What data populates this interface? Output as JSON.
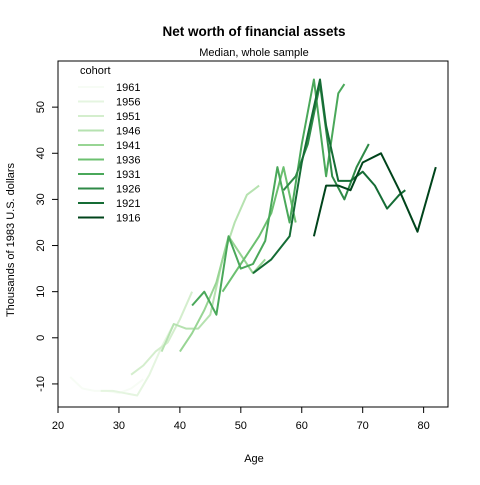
{
  "chart_data": {
    "type": "line",
    "title": "Net worth of financial assets",
    "subtitle": "Median, whole sample",
    "xlabel": "Age",
    "ylabel": "Thousands of 1983 U.S. dollars",
    "xlim": [
      20,
      84
    ],
    "ylim": [
      -15,
      60
    ],
    "x_ticks": [
      20,
      30,
      40,
      50,
      60,
      70,
      80
    ],
    "y_ticks": [
      -10,
      0,
      10,
      20,
      30,
      40,
      50
    ],
    "grid": false,
    "legend_position": "top-left",
    "legend_title": "cohort",
    "series": [
      {
        "name": "1961",
        "color": "#f7fcf5",
        "x": [
          22,
          24,
          26,
          28,
          30,
          32,
          34
        ],
        "y": [
          -8.5,
          -11,
          -11.5,
          -11.5,
          -12,
          -11,
          -9
        ]
      },
      {
        "name": "1956",
        "color": "#e5f5e0",
        "x": [
          27,
          29,
          31,
          33,
          35,
          37,
          39
        ],
        "y": [
          -11.5,
          -11.5,
          -12,
          -12.5,
          -8,
          -2,
          3
        ]
      },
      {
        "name": "1951",
        "color": "#d4eecd",
        "x": [
          32,
          34,
          36,
          38,
          40,
          42
        ],
        "y": [
          -8,
          -6,
          -3,
          -1,
          4,
          10
        ]
      },
      {
        "name": "1946",
        "color": "#b6e2b0",
        "x": [
          37,
          39,
          41,
          43,
          45,
          47,
          49,
          51,
          53
        ],
        "y": [
          -3,
          3,
          2,
          2,
          5,
          17,
          25,
          31,
          33
        ]
      },
      {
        "name": "1941",
        "color": "#98d594",
        "x": [
          40,
          42,
          44,
          46,
          48,
          50,
          52,
          54
        ],
        "y": [
          -3,
          1,
          6,
          12,
          22,
          18,
          14,
          17
        ]
      },
      {
        "name": "1936",
        "color": "#6cc070",
        "x": [
          47,
          49,
          51,
          53,
          55,
          57,
          59
        ],
        "y": [
          10,
          14,
          18,
          22,
          27,
          37,
          25
        ]
      },
      {
        "name": "1931",
        "color": "#4aa85a",
        "x": [
          42,
          44,
          46,
          48,
          50,
          52,
          54,
          56,
          58,
          60,
          62,
          64,
          66,
          67
        ],
        "y": [
          7,
          10,
          5,
          22,
          15,
          16,
          21,
          37,
          25,
          42,
          56,
          35,
          53,
          55
        ]
      },
      {
        "name": "1926",
        "color": "#2f8a47",
        "x": [
          57,
          59,
          61,
          63,
          65,
          67,
          69,
          71
        ],
        "y": [
          32,
          35,
          42,
          55,
          35,
          30,
          37,
          42
        ]
      },
      {
        "name": "1921",
        "color": "#156c35",
        "x": [
          52,
          55,
          58,
          60,
          62,
          63,
          64,
          66,
          68,
          70,
          72,
          74,
          76,
          77
        ],
        "y": [
          14,
          17,
          22,
          38,
          50,
          56,
          46,
          34,
          34,
          36,
          33,
          28,
          31,
          32
        ]
      },
      {
        "name": "1916",
        "color": "#00441b",
        "x": [
          62,
          64,
          66,
          68,
          70,
          73,
          76,
          79,
          82
        ],
        "y": [
          22,
          33,
          33,
          32,
          38,
          40,
          32,
          23,
          37
        ]
      }
    ]
  }
}
